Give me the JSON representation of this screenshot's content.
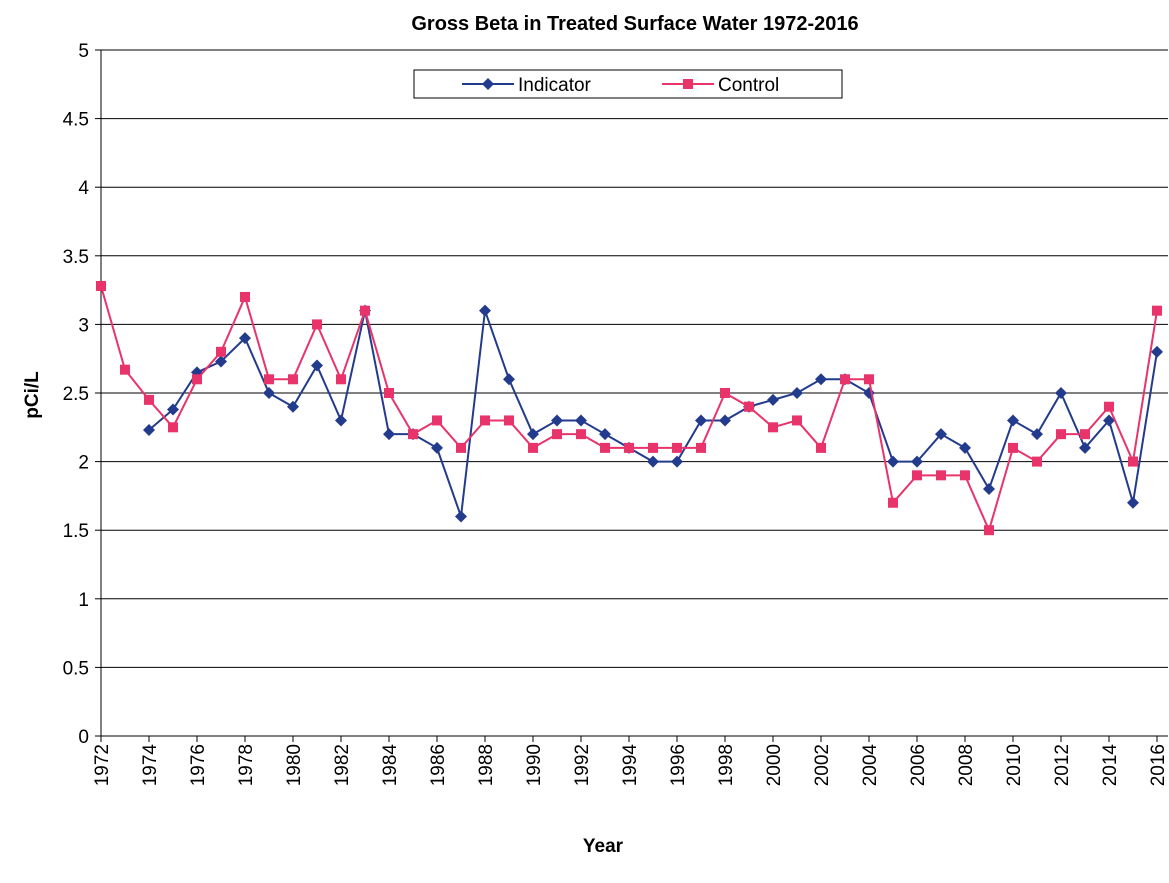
{
  "chart_data": {
    "type": "line",
    "title": "Gross Beta in Treated Surface Water  1972-2016",
    "x_label": "Year",
    "y_label": "pCi/L",
    "x": [
      1972,
      1973,
      1974,
      1975,
      1976,
      1977,
      1978,
      1979,
      1980,
      1981,
      1982,
      1983,
      1984,
      1985,
      1986,
      1987,
      1988,
      1989,
      1990,
      1991,
      1992,
      1993,
      1994,
      1995,
      1996,
      1997,
      1998,
      1999,
      2000,
      2001,
      2002,
      2003,
      2004,
      2005,
      2006,
      2007,
      2008,
      2009,
      2010,
      2011,
      2012,
      2013,
      2014,
      2015,
      2016
    ],
    "series": [
      {
        "name": "Indicator",
        "color": "#233b8c",
        "marker": "diamond",
        "values": [
          null,
          null,
          2.23,
          2.38,
          2.65,
          2.73,
          2.9,
          2.5,
          2.4,
          2.7,
          2.3,
          3.1,
          2.2,
          2.2,
          2.1,
          1.6,
          3.1,
          2.6,
          2.2,
          2.3,
          2.3,
          2.2,
          2.1,
          2.0,
          2.0,
          2.3,
          2.3,
          2.4,
          2.45,
          2.5,
          2.6,
          2.6,
          2.5,
          2.0,
          2.0,
          2.2,
          2.1,
          1.8,
          2.3,
          2.2,
          2.5,
          2.1,
          2.3,
          1.7,
          2.8
        ]
      },
      {
        "name": "Control",
        "color": "#e8336b",
        "marker": "square",
        "values": [
          3.28,
          2.67,
          2.45,
          2.25,
          2.6,
          2.8,
          3.2,
          2.6,
          2.6,
          3.0,
          2.6,
          3.1,
          2.5,
          2.2,
          2.3,
          2.1,
          2.3,
          2.3,
          2.1,
          2.2,
          2.2,
          2.1,
          2.1,
          2.1,
          2.1,
          2.1,
          2.5,
          2.4,
          2.25,
          2.3,
          2.1,
          2.6,
          2.6,
          1.7,
          1.9,
          1.9,
          1.9,
          1.5,
          2.1,
          2.0,
          2.2,
          2.2,
          2.4,
          2.0,
          3.1
        ]
      }
    ],
    "xlim": [
      1972,
      2016
    ],
    "xticks": [
      1972,
      1974,
      1976,
      1978,
      1980,
      1982,
      1984,
      1986,
      1988,
      1990,
      1992,
      1994,
      1996,
      1998,
      2000,
      2002,
      2004,
      2006,
      2008,
      2010,
      2012,
      2014,
      2016
    ],
    "ylim": [
      0,
      5
    ],
    "yticks": [
      0,
      0.5,
      1,
      1.5,
      2,
      2.5,
      3,
      3.5,
      4,
      4.5,
      5
    ],
    "grid": true,
    "legend": "top"
  }
}
